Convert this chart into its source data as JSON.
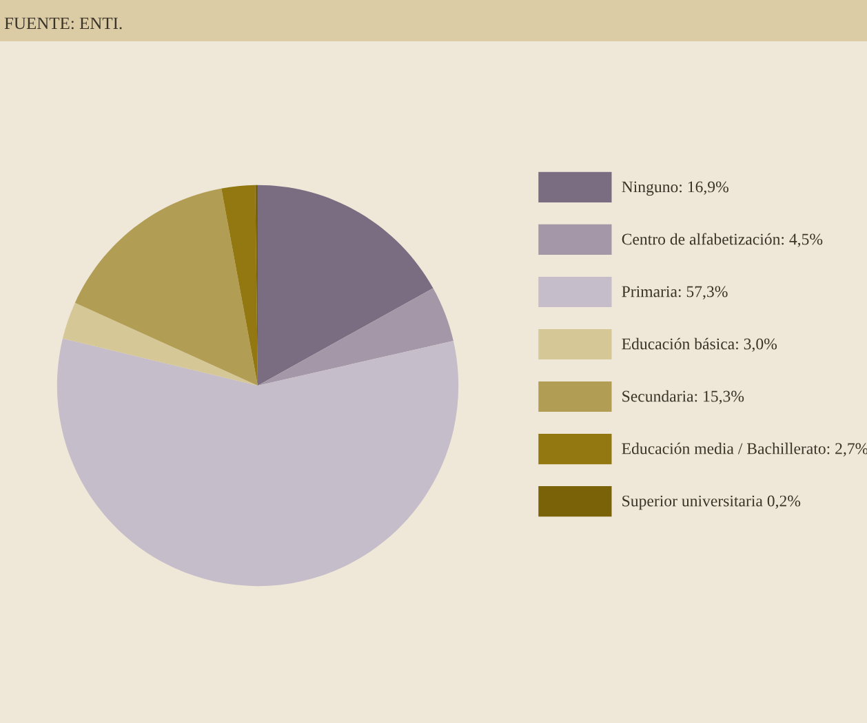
{
  "chart_data": {
    "type": "pie",
    "categories": [
      "Ninguno: 16,9%",
      "Centro de alfabetización: 4,5%",
      "Primaria: 57,3%",
      "Educación básica: 3,0%",
      "Secundaria: 15,3%",
      "Educación media / Bachillerato: 2,7%",
      "Superior universitaria 0,2%"
    ],
    "values": [
      16.9,
      4.5,
      57.3,
      3.0,
      15.3,
      2.7,
      0.2
    ],
    "colors": [
      "#7a6d82",
      "#a497a8",
      "#c5bdc9",
      "#d6c797",
      "#b29d54",
      "#937812",
      "#7a6208"
    ],
    "legend": "right",
    "annotations": [
      "FUENTE: ENTI."
    ]
  }
}
